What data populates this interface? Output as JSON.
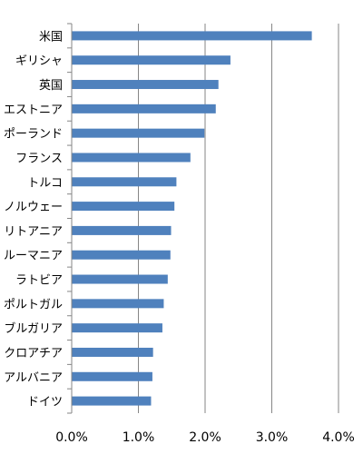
{
  "chart_data": {
    "type": "bar",
    "orientation": "horizontal",
    "categories": [
      "米国",
      "ギリシャ",
      "英国",
      "エストニア",
      "ポーランド",
      "フランス",
      "トルコ",
      "ノルウェー",
      "リトアニア",
      "ルーマニア",
      "ラトビア",
      "ポルトガル",
      "ブルガリア",
      "クロアチア",
      "アルバニア",
      "ドイツ"
    ],
    "values": [
      3.6,
      2.38,
      2.2,
      2.16,
      1.99,
      1.78,
      1.57,
      1.54,
      1.49,
      1.48,
      1.44,
      1.38,
      1.36,
      1.22,
      1.21,
      1.19
    ],
    "xlim": [
      0,
      4
    ],
    "xticks": [
      0,
      1,
      2,
      3,
      4
    ],
    "xtick_labels": [
      "0.0%",
      "1.0%",
      "2.0%",
      "3.0%",
      "4.0%"
    ],
    "title": "",
    "xlabel": "",
    "ylabel": "",
    "grid": "vertical",
    "legend": "none",
    "bar_color": "#4F81BD",
    "grid_color": "#868686"
  }
}
